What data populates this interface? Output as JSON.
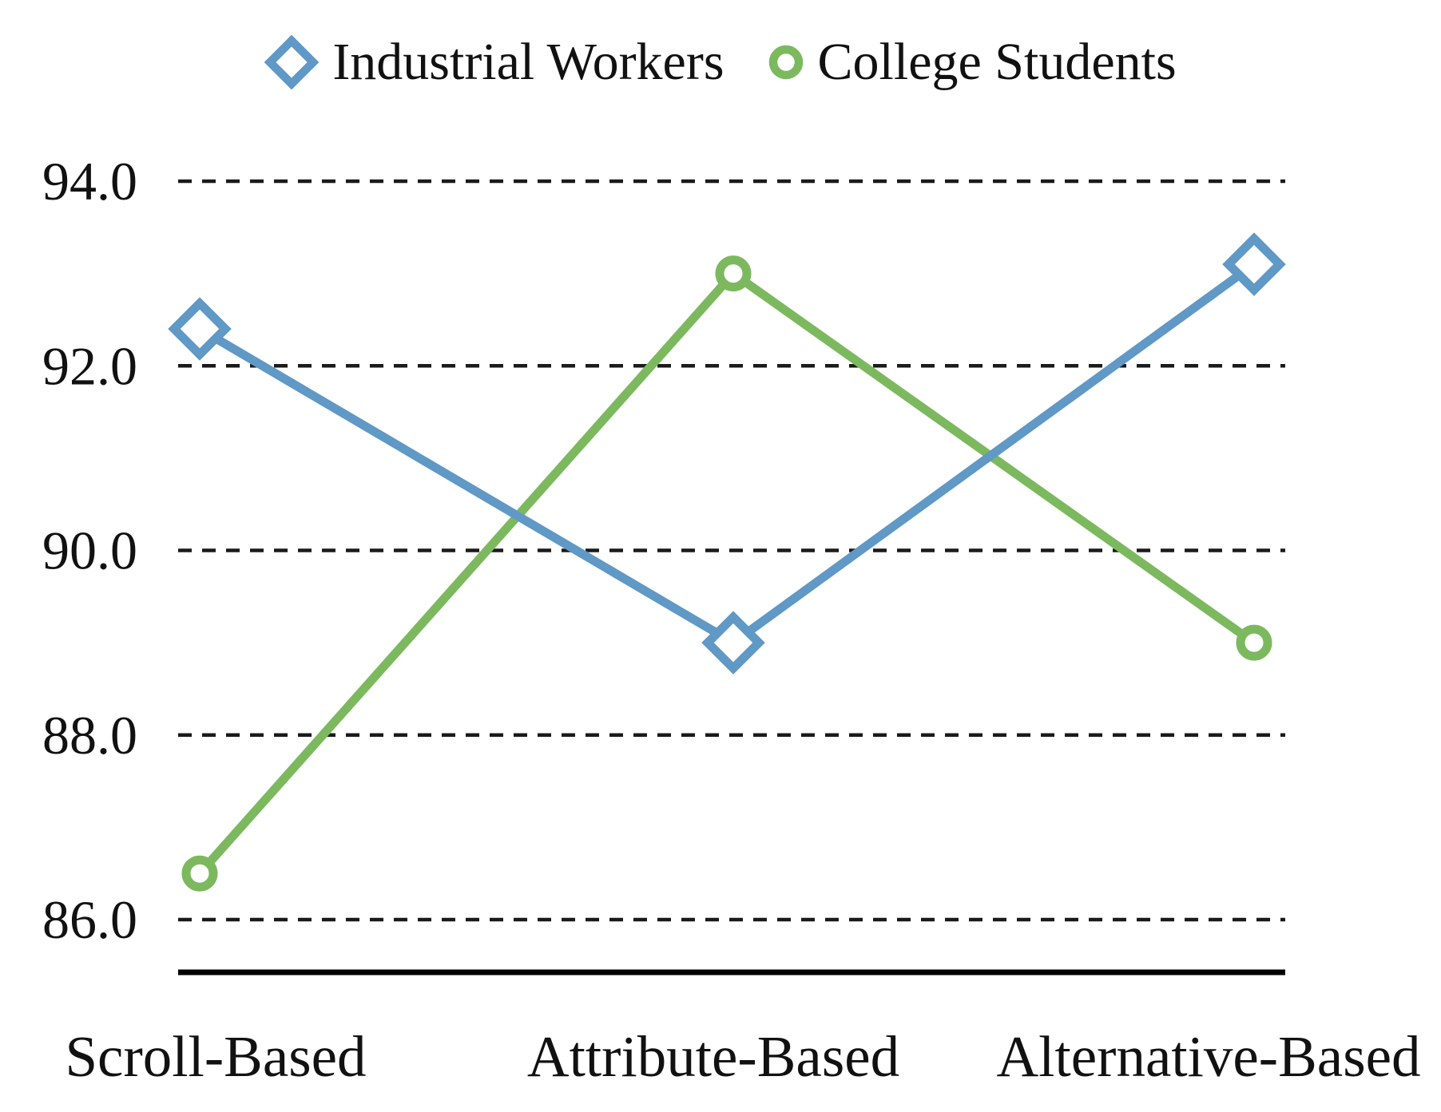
{
  "figure": {
    "background": "#ffffff",
    "text_color": "#111111"
  },
  "chart_data": {
    "type": "line",
    "categories": [
      "Scroll-Based",
      "Attribute-Based",
      "Alternative-Based"
    ],
    "series": [
      {
        "name": "Industrial Workers",
        "values": [
          92.4,
          89.0,
          93.1
        ],
        "color": "#6098C6",
        "marker": "diamond-outline"
      },
      {
        "name": "College Students",
        "values": [
          86.5,
          93.0,
          89.0
        ],
        "color": "#7CB95E",
        "marker": "circle-outline"
      }
    ],
    "title": "",
    "xlabel": "",
    "ylabel": "",
    "ylim": [
      86.0,
      94.0
    ],
    "ytick_step": 2.0,
    "ytick_labels": [
      "86.0",
      "88.0",
      "90.0",
      "92.0",
      "94.0"
    ],
    "grid": "horizontal-dashed",
    "grid_color": "#1a1a1a",
    "axis_color": "#000000",
    "legend_position": "top"
  }
}
